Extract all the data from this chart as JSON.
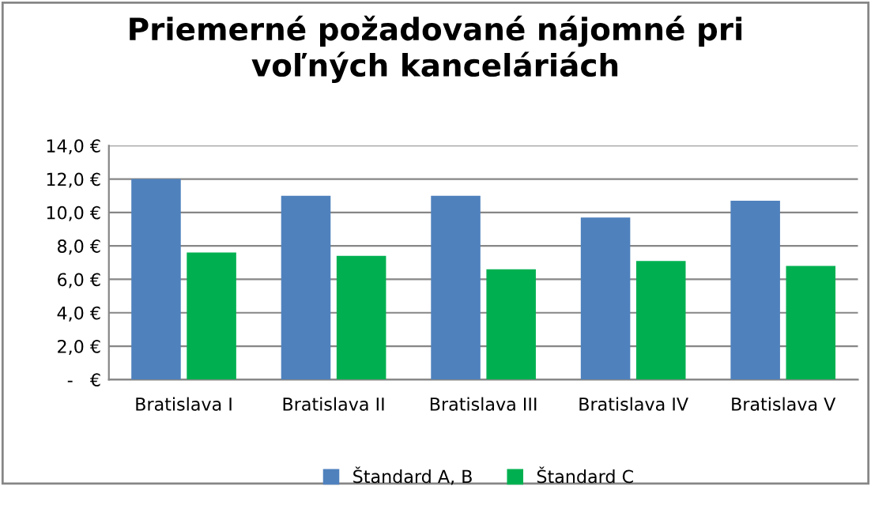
{
  "chart_data": {
    "type": "bar",
    "title": "Priemerné požadované nájomné pri\nvoľných kanceláriách",
    "categories": [
      "Bratislava I",
      "Bratislava II",
      "Bratislava III",
      "Bratislava IV",
      "Bratislava V"
    ],
    "series": [
      {
        "name": "Štandard A, B",
        "color": "#4f81bd",
        "values": [
          12.0,
          11.0,
          11.0,
          9.7,
          10.7
        ]
      },
      {
        "name": "Štandard C",
        "color": "#00b050",
        "values": [
          7.6,
          7.4,
          6.6,
          7.1,
          6.8
        ]
      }
    ],
    "ylim": [
      0,
      14
    ],
    "yticks": [
      {
        "value": 0,
        "label": "-   €"
      },
      {
        "value": 2,
        "label": "2,0 €"
      },
      {
        "value": 4,
        "label": "4,0 €"
      },
      {
        "value": 6,
        "label": "6,0 €"
      },
      {
        "value": 8,
        "label": "8,0 €"
      },
      {
        "value": 10,
        "label": "10,0 €"
      },
      {
        "value": 12,
        "label": "12,0 €"
      },
      {
        "value": 14,
        "label": "14,0 €"
      }
    ],
    "grid": "y",
    "legend": "bottom"
  }
}
